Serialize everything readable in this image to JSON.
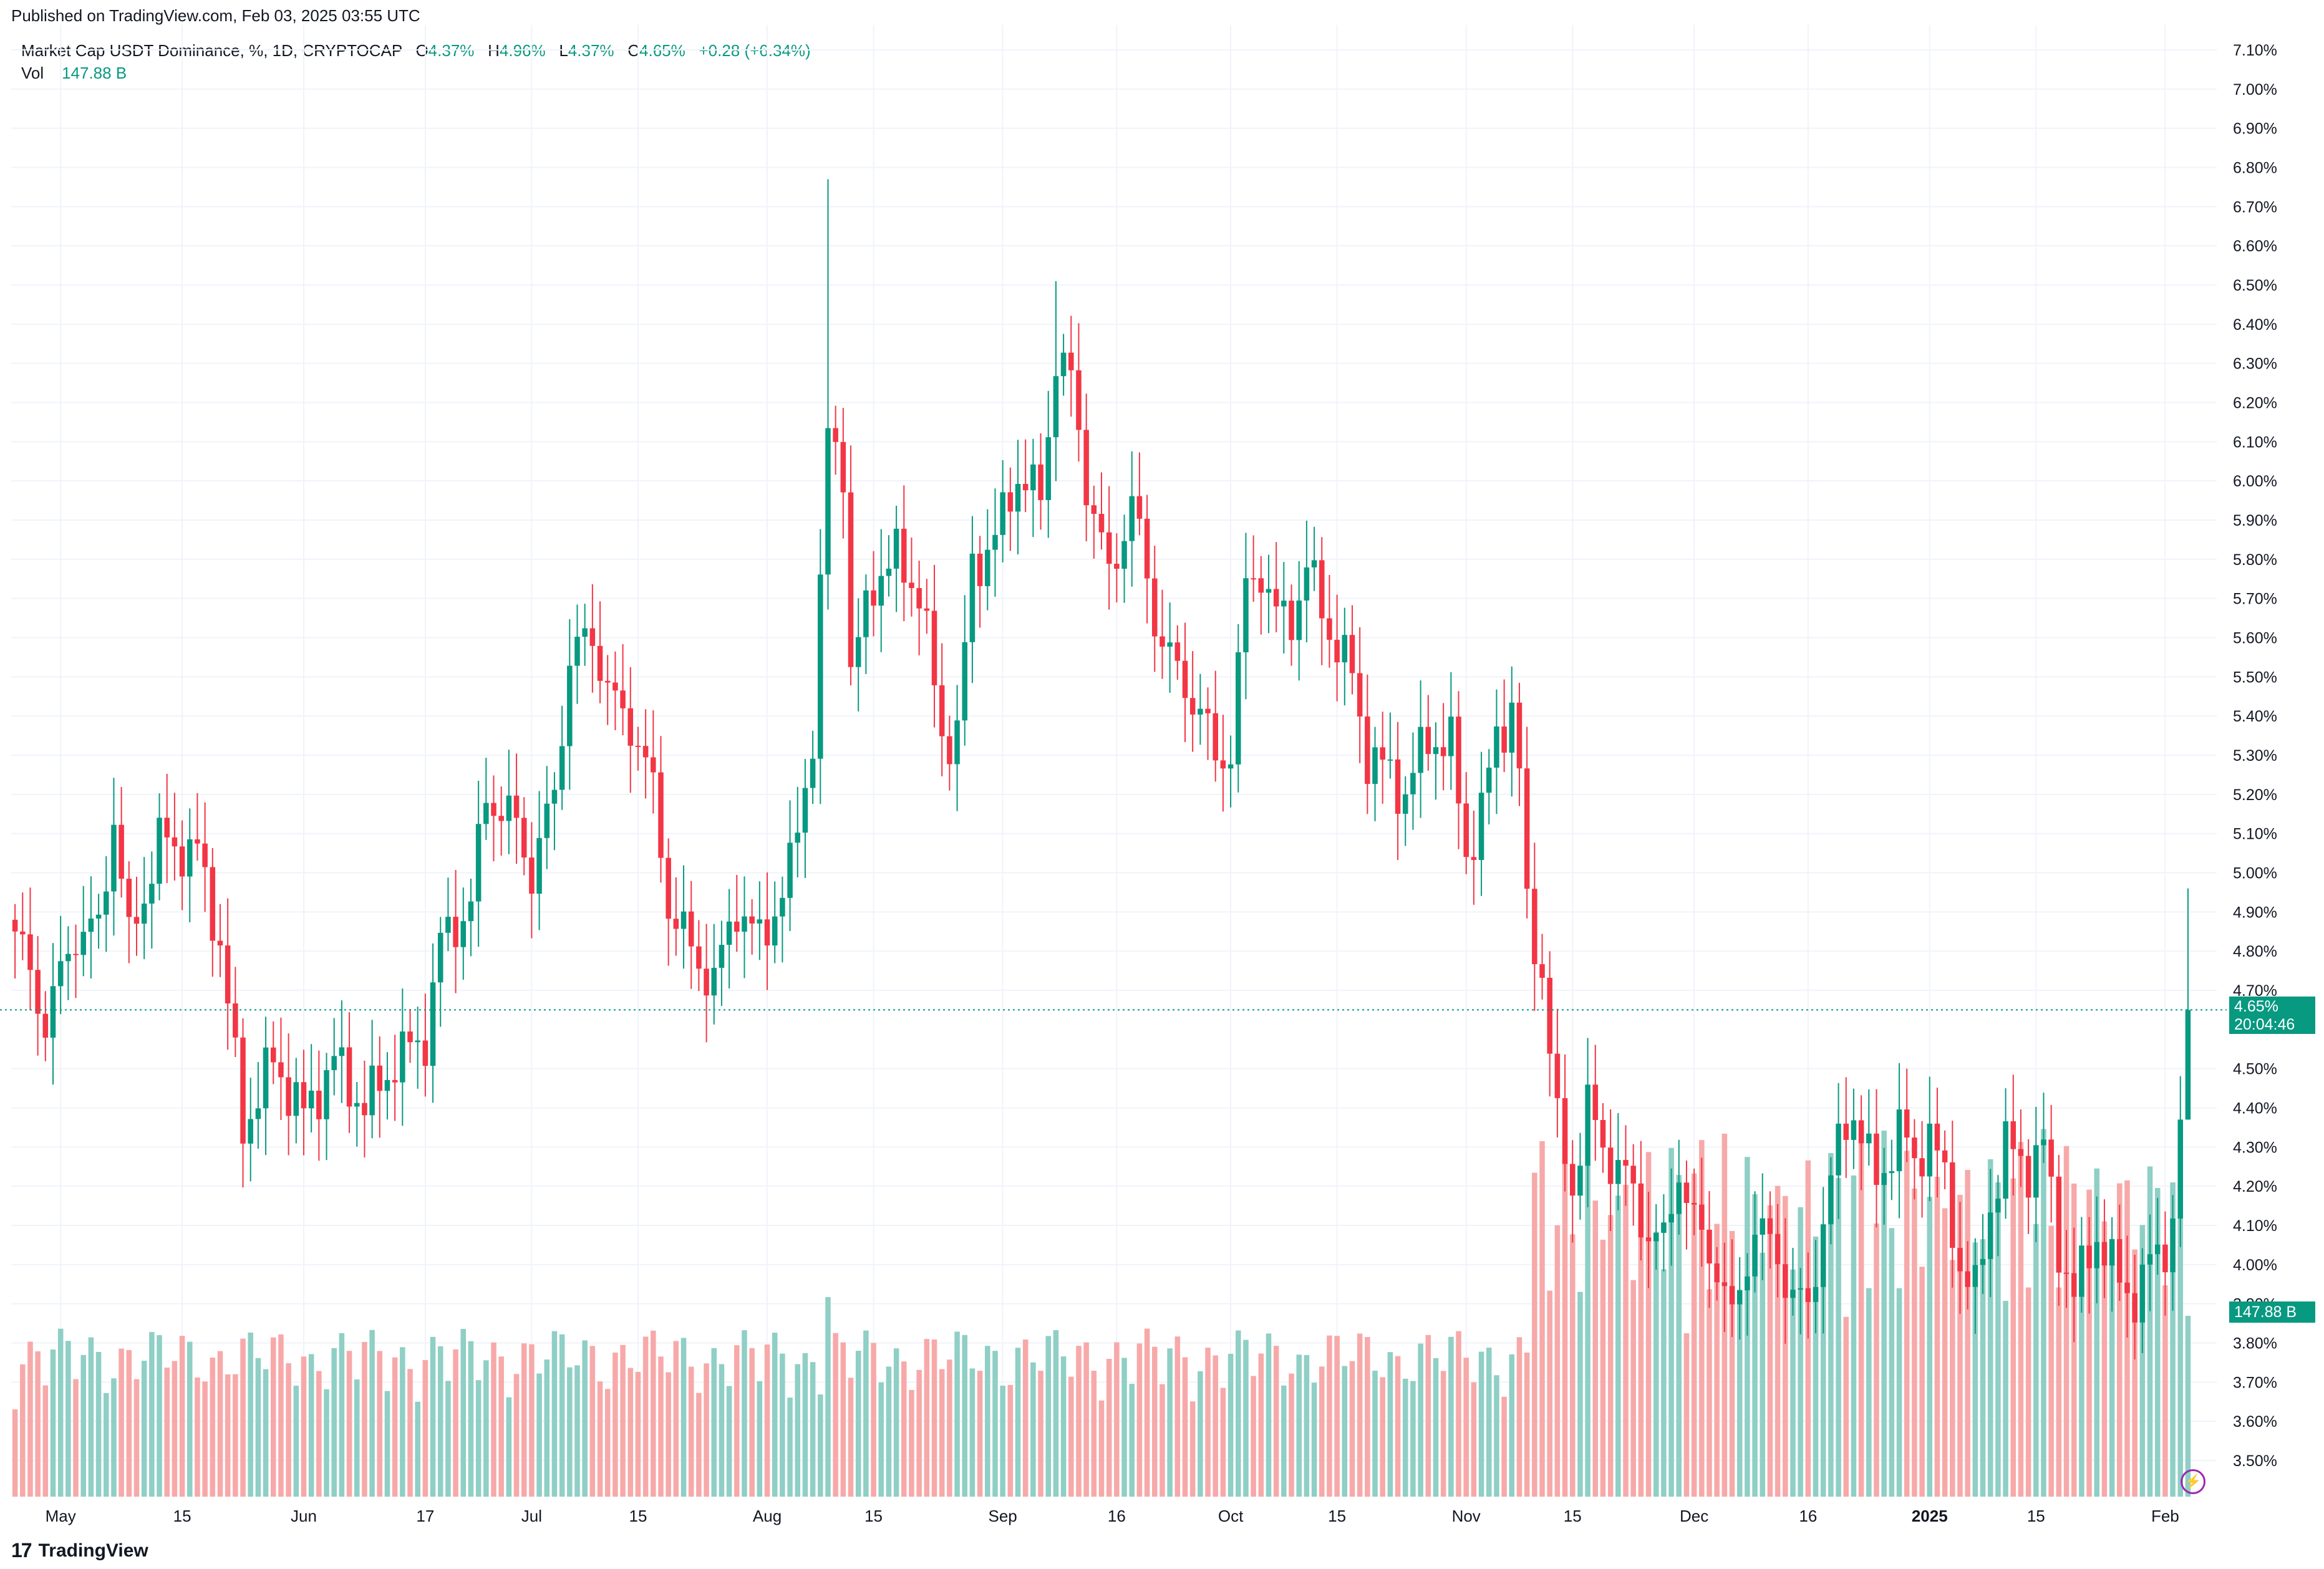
{
  "header": {
    "published": "Published on TradingView.com, Feb 03, 2025 03:55 UTC"
  },
  "legend": {
    "symbol": "Market Cap USDT Dominance, %, 1D, CRYPTOCAP",
    "o_label": "O",
    "o_value": "4.37%",
    "h_label": "H",
    "h_value": "4.96%",
    "l_label": "L",
    "l_value": "4.37%",
    "c_label": "C",
    "c_value": "4.65%",
    "change": "+0.28 (+6.34%)",
    "vol_label": "Vol",
    "vol_value": "147.88 B"
  },
  "price_tag": {
    "price": "4.65%",
    "countdown": "20:04:46"
  },
  "vol_tag": "147.88 B",
  "footer": {
    "brand": "TradingView",
    "logo_text": "17"
  },
  "colors": {
    "up": "#089981",
    "down": "#f23645",
    "vol_up": "#8fcfc5",
    "vol_down": "#f7a9a9",
    "grid": "#f0f3fa"
  },
  "icons": [
    "tradingview-logo-icon",
    "flash-icon"
  ],
  "chart_data": {
    "type": "candlestick",
    "title": "Market Cap USDT Dominance, %, 1D, CRYPTOCAP",
    "y_axis_ticks": [
      "7.10%",
      "7.00%",
      "6.90%",
      "6.80%",
      "6.70%",
      "6.60%",
      "6.50%",
      "6.40%",
      "6.30%",
      "6.20%",
      "6.10%",
      "6.00%",
      "5.90%",
      "5.80%",
      "5.70%",
      "5.60%",
      "5.50%",
      "5.40%",
      "5.30%",
      "5.20%",
      "5.10%",
      "5.00%",
      "4.90%",
      "4.80%",
      "4.70%",
      "4.50%",
      "4.40%",
      "4.30%",
      "4.20%",
      "4.10%",
      "4.00%",
      "3.90%",
      "3.80%",
      "3.70%",
      "3.60%",
      "3.50%"
    ],
    "ylim": [
      3.44,
      7.12
    ],
    "x_axis_ticks": [
      {
        "label": "May",
        "day": 6
      },
      {
        "label": "15",
        "day": 22
      },
      {
        "label": "Jun",
        "day": 38
      },
      {
        "label": "17",
        "day": 54
      },
      {
        "label": "Jul",
        "day": 68
      },
      {
        "label": "15",
        "day": 82
      },
      {
        "label": "Aug",
        "day": 99
      },
      {
        "label": "15",
        "day": 113
      },
      {
        "label": "Sep",
        "day": 130
      },
      {
        "label": "16",
        "day": 145
      },
      {
        "label": "Oct",
        "day": 160
      },
      {
        "label": "15",
        "day": 174
      },
      {
        "label": "Nov",
        "day": 191
      },
      {
        "label": "15",
        "day": 205
      },
      {
        "label": "Dec",
        "day": 221
      },
      {
        "label": "16",
        "day": 236
      },
      {
        "label": "2025",
        "day": 252
      },
      {
        "label": "15",
        "day": 266
      },
      {
        "label": "Feb",
        "day": 283
      }
    ],
    "keypoints": [
      [
        0,
        4.85
      ],
      [
        4,
        4.62
      ],
      [
        8,
        4.85
      ],
      [
        11,
        4.85
      ],
      [
        13,
        5.15
      ],
      [
        15,
        4.82
      ],
      [
        19,
        5.08
      ],
      [
        24,
        5.05
      ],
      [
        27,
        4.82
      ],
      [
        30,
        4.35
      ],
      [
        34,
        4.52
      ],
      [
        38,
        4.38
      ],
      [
        42,
        4.52
      ],
      [
        46,
        4.4
      ],
      [
        50,
        4.52
      ],
      [
        54,
        4.58
      ],
      [
        56,
        4.82
      ],
      [
        60,
        4.92
      ],
      [
        62,
        5.2
      ],
      [
        66,
        5.12
      ],
      [
        68,
        5.0
      ],
      [
        71,
        5.2
      ],
      [
        73,
        5.55
      ],
      [
        76,
        5.6
      ],
      [
        79,
        5.42
      ],
      [
        82,
        5.35
      ],
      [
        84,
        5.2
      ],
      [
        86,
        4.92
      ],
      [
        89,
        4.8
      ],
      [
        92,
        4.72
      ],
      [
        95,
        4.92
      ],
      [
        98,
        4.82
      ],
      [
        102,
        5.0
      ],
      [
        105,
        5.35
      ],
      [
        106,
        5.7
      ],
      [
        107,
        6.12
      ],
      [
        109,
        6.05
      ],
      [
        110,
        5.5
      ],
      [
        113,
        5.75
      ],
      [
        116,
        5.8
      ],
      [
        119,
        5.72
      ],
      [
        122,
        5.35
      ],
      [
        124,
        5.35
      ],
      [
        126,
        5.78
      ],
      [
        129,
        5.85
      ],
      [
        132,
        6.02
      ],
      [
        135,
        5.95
      ],
      [
        137,
        6.32
      ],
      [
        139,
        6.25
      ],
      [
        141,
        6.0
      ],
      [
        144,
        5.75
      ],
      [
        147,
        5.95
      ],
      [
        150,
        5.65
      ],
      [
        153,
        5.5
      ],
      [
        156,
        5.42
      ],
      [
        158,
        5.28
      ],
      [
        160,
        5.32
      ],
      [
        162,
        5.72
      ],
      [
        164,
        5.78
      ],
      [
        166,
        5.65
      ],
      [
        168,
        5.65
      ],
      [
        170,
        5.78
      ],
      [
        173,
        5.62
      ],
      [
        176,
        5.5
      ],
      [
        178,
        5.3
      ],
      [
        181,
        5.25
      ],
      [
        183,
        5.2
      ],
      [
        186,
        5.35
      ],
      [
        189,
        5.32
      ],
      [
        191,
        5.05
      ],
      [
        193,
        5.15
      ],
      [
        195,
        5.35
      ],
      [
        197,
        5.42
      ],
      [
        198,
        5.25
      ],
      [
        199,
        4.9
      ],
      [
        201,
        4.75
      ],
      [
        203,
        4.35
      ],
      [
        205,
        4.2
      ],
      [
        207,
        4.4
      ],
      [
        209,
        4.3
      ],
      [
        212,
        4.22
      ],
      [
        215,
        4.08
      ],
      [
        217,
        4.05
      ],
      [
        219,
        4.25
      ],
      [
        221,
        4.1
      ],
      [
        224,
        4.0
      ],
      [
        226,
        3.85
      ],
      [
        229,
        4.1
      ],
      [
        232,
        4.02
      ],
      [
        234,
        3.92
      ],
      [
        236,
        3.88
      ],
      [
        238,
        4.12
      ],
      [
        240,
        4.3
      ],
      [
        242,
        4.4
      ],
      [
        245,
        4.2
      ],
      [
        248,
        4.35
      ],
      [
        250,
        4.25
      ],
      [
        252,
        4.35
      ],
      [
        254,
        4.2
      ],
      [
        256,
        4.0
      ],
      [
        258,
        3.92
      ],
      [
        260,
        4.15
      ],
      [
        262,
        4.3
      ],
      [
        265,
        4.25
      ],
      [
        267,
        4.3
      ],
      [
        269,
        4.05
      ],
      [
        271,
        3.92
      ],
      [
        274,
        4.08
      ],
      [
        277,
        3.95
      ],
      [
        279,
        3.92
      ],
      [
        281,
        4.0
      ],
      [
        283,
        4.05
      ],
      [
        284,
        4.12
      ],
      [
        285,
        4.37
      ],
      [
        286,
        4.65
      ]
    ]
  }
}
